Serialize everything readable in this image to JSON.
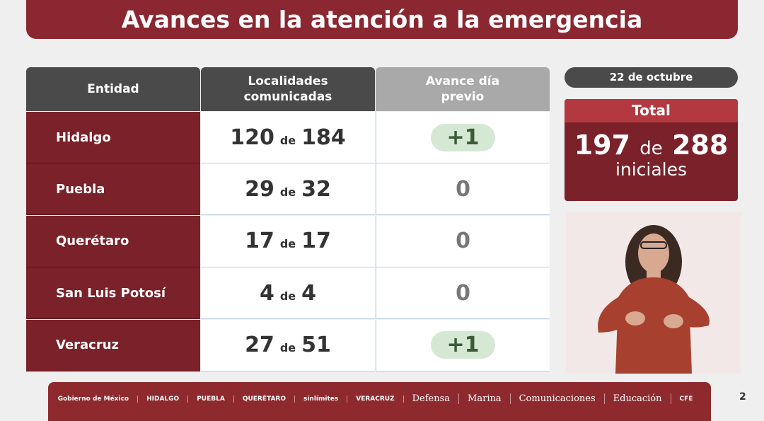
{
  "title": "Avances en la atención a la emergencia",
  "table": {
    "headers": [
      "Entidad",
      "Localidades comunicadas",
      "Avance día previo"
    ],
    "connector": "de",
    "rows": [
      {
        "entidad": "Hidalgo",
        "comunicadas": "120",
        "total": "184",
        "avance": "+1",
        "highlight": true
      },
      {
        "entidad": "Puebla",
        "comunicadas": "29",
        "total": "32",
        "avance": "0",
        "highlight": false
      },
      {
        "entidad": "Querétaro",
        "comunicadas": "17",
        "total": "17",
        "avance": "0",
        "highlight": false
      },
      {
        "entidad": "San Luis Potosí",
        "comunicadas": "4",
        "total": "4",
        "avance": "0",
        "highlight": false
      },
      {
        "entidad": "Veracruz",
        "comunicadas": "27",
        "total": "51",
        "avance": "+1",
        "highlight": true
      }
    ]
  },
  "date": "22 de octubre",
  "total": {
    "label": "Total",
    "value": "197",
    "connector": "de",
    "of": "288",
    "suffix": "iniciales"
  },
  "footer": {
    "logos": [
      "Gobierno de México",
      "HIDALGO",
      "PUEBLA",
      "QUERÉTARO",
      "sinlímites",
      "VERACRUZ",
      "Defensa",
      "Marina",
      "Comunicaciones",
      "Educación",
      "CFE"
    ]
  },
  "page_number": "2",
  "colors": {
    "maroon": "#7a2129",
    "title": "#8b2731",
    "red": "#b3383f",
    "gray": "#4a4a4a"
  }
}
